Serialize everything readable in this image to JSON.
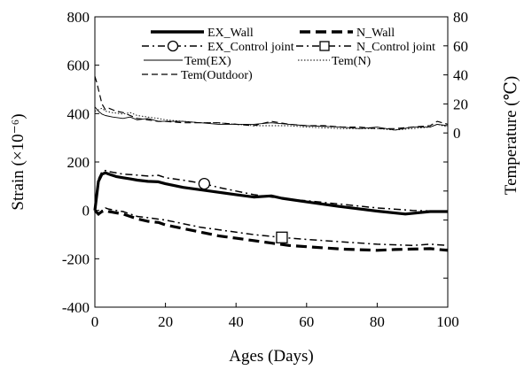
{
  "chart_data": {
    "type": "line",
    "title": "",
    "xlabel": "Ages (Days)",
    "ylabel": "Strain (×10⁻⁶)",
    "y2label": "Temperature (℃)",
    "xlim": [
      0,
      100
    ],
    "ylim": [
      -400,
      800
    ],
    "y2lim": [
      -120,
      80
    ],
    "x_ticks": [
      "0",
      "20",
      "40",
      "60",
      "80",
      "100"
    ],
    "y_ticks": [
      "-400",
      "-200",
      "0",
      "200",
      "400",
      "600",
      "800"
    ],
    "y2_ticks": [
      "0",
      "20",
      "40",
      "60",
      "80"
    ],
    "grid": false,
    "legend_position": "top",
    "series": [
      {
        "name": "EX_Wall",
        "axis": "left",
        "style": "thick-solid",
        "color": "#000000",
        "x": [
          0,
          1,
          2,
          3,
          4,
          6,
          8,
          10,
          12,
          15,
          18,
          20,
          25,
          30,
          35,
          40,
          45,
          50,
          53,
          60,
          70,
          80,
          88,
          95,
          100
        ],
        "y": [
          0,
          120,
          150,
          155,
          150,
          140,
          135,
          130,
          125,
          120,
          118,
          110,
          95,
          85,
          75,
          65,
          55,
          60,
          50,
          35,
          15,
          -3,
          -15,
          -5,
          -5
        ]
      },
      {
        "name": "N_Wall",
        "axis": "left",
        "style": "thick-dash",
        "color": "#000000",
        "x": [
          0,
          1,
          2,
          3,
          4,
          6,
          8,
          10,
          12,
          15,
          18,
          20,
          25,
          30,
          35,
          40,
          45,
          50,
          55,
          60,
          70,
          80,
          85,
          90,
          95,
          100
        ],
        "y": [
          0,
          -15,
          -5,
          0,
          -5,
          -10,
          -15,
          -25,
          -35,
          -45,
          -50,
          -60,
          -75,
          -90,
          -105,
          -115,
          -125,
          -135,
          -145,
          -150,
          -160,
          -165,
          -162,
          -160,
          -158,
          -165
        ]
      },
      {
        "name": "EX_Control joint",
        "axis": "left",
        "style": "dash-dot-circle",
        "color": "#000000",
        "x": [
          0,
          1,
          2,
          3,
          4,
          6,
          8,
          10,
          15,
          18,
          20,
          25,
          31,
          35,
          40,
          45,
          50,
          55,
          60,
          70,
          80,
          90,
          100
        ],
        "y": [
          0,
          130,
          160,
          165,
          160,
          155,
          150,
          148,
          142,
          145,
          135,
          125,
          110,
          95,
          80,
          65,
          55,
          45,
          40,
          25,
          10,
          0,
          -5
        ],
        "marker": {
          "x": 31,
          "y": 110
        }
      },
      {
        "name": "N_Control joint",
        "axis": "left",
        "style": "dash-dot-square",
        "color": "#000000",
        "x": [
          0,
          1,
          2,
          3,
          4,
          6,
          8,
          10,
          12,
          15,
          20,
          25,
          30,
          35,
          40,
          45,
          53,
          60,
          70,
          80,
          90,
          95,
          100
        ],
        "y": [
          0,
          -20,
          0,
          10,
          5,
          0,
          -5,
          -15,
          -25,
          -30,
          -40,
          -55,
          -70,
          -80,
          -90,
          -100,
          -112,
          -120,
          -130,
          -140,
          -145,
          -140,
          -145
        ],
        "marker": {
          "x": 53,
          "y": -112
        }
      },
      {
        "name": "Tem(EX)",
        "axis": "right",
        "style": "thin-solid",
        "color": "#000000",
        "x": [
          0,
          1,
          2,
          3,
          5,
          8,
          10,
          12,
          15,
          18,
          20,
          25,
          30,
          35,
          40,
          45,
          50,
          55,
          60,
          70,
          75,
          80,
          85,
          90,
          95,
          97,
          100
        ],
        "y": [
          18,
          15,
          13,
          12,
          11,
          10,
          11,
          9,
          10,
          8,
          8,
          8,
          7,
          6,
          6,
          6,
          7,
          6,
          5,
          4,
          3,
          4,
          2,
          4,
          4,
          6,
          5
        ]
      },
      {
        "name": "Tem(N)",
        "axis": "right",
        "style": "thin-dotted",
        "color": "#000000",
        "x": [
          0,
          1,
          2,
          3,
          5,
          8,
          10,
          12,
          15,
          18,
          20,
          25,
          30,
          35,
          40,
          45,
          50,
          55,
          60,
          70,
          80,
          85,
          90,
          95,
          97,
          100
        ],
        "y": [
          15,
          16,
          17,
          15,
          14,
          13,
          14,
          12,
          11,
          10,
          9,
          8,
          7,
          7,
          6,
          5,
          5,
          5,
          4,
          3,
          3,
          2,
          3,
          4,
          6,
          4
        ]
      },
      {
        "name": "Tem(Outdoor)",
        "axis": "right",
        "style": "dash",
        "color": "#000000",
        "x": [
          0,
          0.5,
          1,
          2,
          3,
          4,
          6,
          8,
          10,
          12,
          15,
          18,
          20,
          25,
          30,
          35,
          40,
          45,
          50,
          55,
          60,
          65,
          70,
          75,
          80,
          85,
          90,
          95,
          97,
          100
        ],
        "y": [
          39,
          35,
          30,
          20,
          16,
          17,
          15,
          14,
          12,
          10,
          9,
          8,
          8,
          7,
          7,
          7,
          6,
          5,
          8,
          6,
          5,
          5,
          4,
          4,
          3,
          3,
          4,
          5,
          8,
          6
        ]
      }
    ],
    "legend_labels": {
      "ex_wall": "EX_Wall",
      "n_wall": "N_Wall",
      "ex_cj": "EX_Control joint",
      "n_cj": "N_Control joint",
      "tem_ex": "Tem(EX)",
      "tem_n": "Tem(N)",
      "tem_out": "Tem(Outdoor)"
    }
  }
}
